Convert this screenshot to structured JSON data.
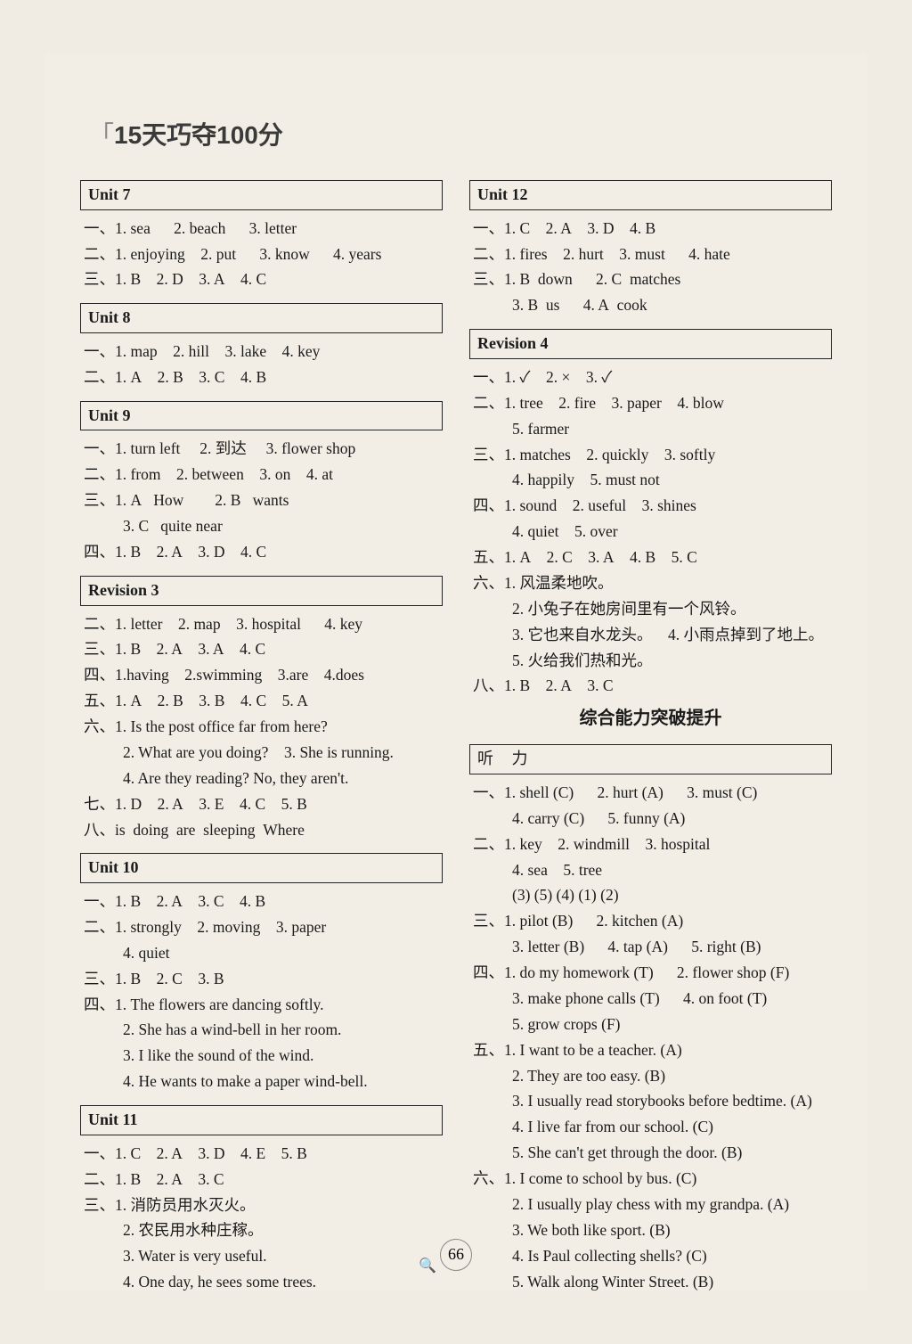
{
  "header": "15天巧夺100分",
  "pagenum": "66",
  "left": {
    "u7": {
      "title": "Unit 7",
      "l1": "一、1. sea      2. beach      3. letter",
      "l2": "二、1. enjoying    2. put      3. know      4. years",
      "l3": "三、1. B    2. D    3. A    4. C"
    },
    "u8": {
      "title": "Unit 8",
      "l1": "一、1. map    2. hill    3. lake    4. key",
      "l2": "二、1. A    2. B    3. C    4. B"
    },
    "u9": {
      "title": "Unit 9",
      "l1": "一、1. turn left     2. 到达     3. flower shop",
      "l2": "二、1. from    2. between    3. on    4. at",
      "l3": "三、1. A   How        2. B   wants",
      "l3b": "3. C   quite near",
      "l4": "四、1. B    2. A    3. D    4. C"
    },
    "r3": {
      "title": "Revision 3",
      "l1": "二、1. letter    2. map    3. hospital      4. key",
      "l2": "三、1. B    2. A    3. A    4. C",
      "l3": "四、1.having    2.swimming    3.are    4.does",
      "l4": "五、1. A    2. B    3. B    4. C    5. A",
      "l5": "六、1. Is the post office far from here?",
      "l5b": "2. What are you doing?    3. She is running.",
      "l5c": "4. Are they reading? No, they aren't.",
      "l6": "七、1. D    2. A    3. E    4. C    5. B",
      "l7": "八、is  doing  are  sleeping  Where"
    },
    "u10": {
      "title": "Unit 10",
      "l1": "一、1. B    2. A    3. C    4. B",
      "l2": "二、1. strongly    2. moving    3. paper",
      "l2b": "4. quiet",
      "l3": "三、1. B    2. C    3. B",
      "l4": "四、1. The flowers are dancing softly.",
      "l4b": "2. She has a wind-bell in her room.",
      "l4c": "3. I like the sound of the wind.",
      "l4d": "4. He wants to make a paper wind-bell."
    },
    "u11": {
      "title": "Unit 11",
      "l1": "一、1. C    2. A    3. D    4. E    5. B",
      "l2": "二、1. B    2. A    3. C",
      "l3": "三、1. 消防员用水灭火。",
      "l3b": "2. 农民用水种庄稼。",
      "l3c": "3. Water is very useful.",
      "l3d": "4. One day, he sees some trees."
    }
  },
  "right": {
    "u12": {
      "title": "Unit 12",
      "l1": "一、1. C    2. A    3. D    4. B",
      "l2": "二、1. fires    2. hurt    3. must      4. hate",
      "l3": "三、1. B  down      2. C  matches",
      "l3b": "3. B  us      4. A  cook"
    },
    "r4": {
      "title": "Revision 4",
      "l1": "一、1. ✓    2. ×    3. ✓",
      "l2": "二、1. tree    2. fire    3. paper    4. blow",
      "l2b": "5. farmer",
      "l3": "三、1. matches    2. quickly    3. softly",
      "l3b": "4. happily    5. must not",
      "l4": "四、1. sound    2. useful    3. shines",
      "l4b": "4. quiet    5. over",
      "l5": "五、1. A    2. C    3. A    4. B    5. C",
      "l6": "六、1. 风温柔地吹。",
      "l6b": "2. 小兔子在她房间里有一个风铃。",
      "l6c": "3. 它也来自水龙头。    4. 小雨点掉到了地上。",
      "l6d": "5. 火给我们热和光。",
      "l7": "八、1. B    2. A    3. C"
    },
    "boldtitle": "综合能力突破提升",
    "listen": {
      "title": "听 力",
      "l1": "一、1. shell (C)      2. hurt (A)      3. must (C)",
      "l1b": "4. carry (C)      5. funny (A)",
      "l2": "二、1. key    2. windmill    3. hospital",
      "l2b": "4. sea    5. tree",
      "l2c": "(3) (5) (4) (1) (2)",
      "l3": "三、1. pilot (B)      2. kitchen (A)",
      "l3b": "3. letter (B)      4. tap (A)      5. right (B)",
      "l4": "四、1. do my homework (T)      2. flower shop (F)",
      "l4b": "3. make phone calls (T)      4. on foot (T)",
      "l4c": "5. grow crops (F)",
      "l5": "五、1. I want to be a teacher. (A)",
      "l5b": "2. They are too easy. (B)",
      "l5c": "3. I usually read storybooks before bedtime. (A)",
      "l5d": "4. I live far from our school. (C)",
      "l5e": "5. She can't get through the door. (B)",
      "l6": "六、1. I come to school by bus. (C)",
      "l6b": "2. I usually play chess with my grandpa. (A)",
      "l6c": "3. We both like sport. (B)",
      "l6d": "4. Is Paul collecting shells? (C)",
      "l6e": "5. Walk along Winter Street. (B)"
    }
  }
}
